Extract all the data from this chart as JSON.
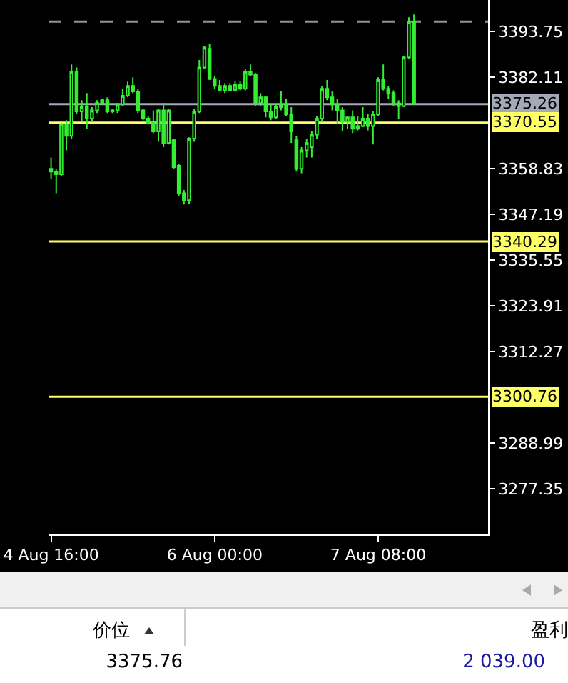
{
  "chart_data": {
    "type": "candlestick",
    "x": [
      "--08-04T16:00",
      "--08-04T17:00",
      "--08-04T18:00",
      "--08-04T19:00",
      "--08-04T20:00",
      "--08-04T21:00",
      "--08-04T22:00",
      "--08-04T23:00",
      "--08-05T00:00",
      "--08-05T01:00",
      "--08-05T02:00",
      "--08-05T03:00",
      "--08-05T04:00",
      "--08-05T05:00",
      "--08-05T06:00",
      "--08-05T07:00",
      "--08-05T08:00",
      "--08-05T09:00",
      "--08-05T10:00",
      "--08-05T11:00",
      "--08-05T12:00",
      "--08-05T13:00",
      "--08-05T14:00",
      "--08-05T15:00",
      "--08-05T16:00",
      "--08-05T17:00",
      "--08-05T18:00",
      "--08-05T19:00",
      "--08-05T20:00",
      "--08-05T21:00",
      "--08-05T22:00",
      "--08-05T23:00",
      "--08-06T00:00",
      "--08-06T01:00",
      "--08-06T02:00",
      "--08-06T03:00",
      "--08-06T04:00",
      "--08-06T05:00",
      "--08-06T06:00",
      "--08-06T07:00",
      "--08-06T08:00",
      "--08-06T09:00",
      "--08-06T10:00",
      "--08-06T11:00",
      "--08-06T12:00",
      "--08-06T13:00",
      "--08-06T14:00",
      "--08-06T15:00",
      "--08-06T16:00",
      "--08-06T17:00",
      "--08-06T18:00",
      "--08-06T19:00",
      "--08-06T20:00",
      "--08-06T21:00",
      "--08-06T22:00",
      "--08-06T23:00",
      "--08-07T00:00",
      "--08-07T01:00",
      "--08-07T02:00",
      "--08-07T03:00",
      "--08-07T04:00",
      "--08-07T05:00",
      "--08-07T06:00",
      "--08-07T07:00",
      "--08-07T08:00",
      "--08-07T09:00",
      "--08-07T10:00",
      "--08-07T11:00",
      "--08-07T12:00",
      "--08-07T13:00",
      "--08-07T14:00",
      "--08-07T15:00"
    ],
    "series": [
      {
        "color": "#33ee33",
        "ohlc": [
          [
            3358.1,
            3361.7,
            3356.3,
            3358.8
          ],
          [
            3358.1,
            3358.8,
            3352.6,
            3357.4
          ],
          [
            3357.4,
            3370.5,
            3357.0,
            3370.1
          ],
          [
            3370.1,
            3371.2,
            3363.5,
            3367.2
          ],
          [
            3367.2,
            3385.4,
            3366.5,
            3383.6
          ],
          [
            3383.6,
            3384.6,
            3372.7,
            3373.4
          ],
          [
            3373.4,
            3376.3,
            3370.8,
            3374.5
          ],
          [
            3374.5,
            3378.1,
            3369.0,
            3371.6
          ],
          [
            3371.6,
            3374.5,
            3370.8,
            3373.7
          ],
          [
            3373.7,
            3376.3,
            3373.0,
            3375.6
          ],
          [
            3375.6,
            3376.7,
            3375.2,
            3376.3
          ],
          [
            3376.3,
            3377.0,
            3373.0,
            3373.4
          ],
          [
            3373.4,
            3374.1,
            3373.0,
            3373.7
          ],
          [
            3373.7,
            3375.6,
            3373.0,
            3375.2
          ],
          [
            3375.2,
            3379.2,
            3374.8,
            3377.4
          ],
          [
            3377.4,
            3381.0,
            3377.0,
            3379.9
          ],
          [
            3379.9,
            3382.1,
            3378.1,
            3378.5
          ],
          [
            3378.5,
            3379.2,
            3373.0,
            3373.7
          ],
          [
            3373.7,
            3374.1,
            3371.2,
            3371.6
          ],
          [
            3371.6,
            3372.3,
            3370.1,
            3370.5
          ],
          [
            3370.5,
            3373.7,
            3367.9,
            3368.3
          ],
          [
            3368.3,
            3374.1,
            3365.7,
            3373.7
          ],
          [
            3373.7,
            3375.6,
            3364.3,
            3365.4
          ],
          [
            3365.4,
            3374.1,
            3365.0,
            3373.7
          ],
          [
            3366.1,
            3366.5,
            3358.8,
            3359.2
          ],
          [
            3359.6,
            3360.0,
            3351.9,
            3352.6
          ],
          [
            3352.6,
            3353.4,
            3349.7,
            3350.8
          ],
          [
            3350.8,
            3366.8,
            3349.9,
            3366.5
          ],
          [
            3366.5,
            3374.1,
            3365.7,
            3373.4
          ],
          [
            3373.4,
            3386.5,
            3373.0,
            3384.6
          ],
          [
            3384.6,
            3390.1,
            3384.3,
            3389.7
          ],
          [
            3389.4,
            3390.5,
            3381.4,
            3381.7
          ],
          [
            3381.7,
            3382.5,
            3379.2,
            3379.9
          ],
          [
            3379.9,
            3381.4,
            3378.5,
            3378.8
          ],
          [
            3378.8,
            3380.6,
            3378.1,
            3379.9
          ],
          [
            3379.9,
            3380.6,
            3378.5,
            3378.8
          ],
          [
            3378.8,
            3381.0,
            3378.5,
            3380.3
          ],
          [
            3380.3,
            3381.0,
            3378.8,
            3379.2
          ],
          [
            3379.2,
            3384.3,
            3378.8,
            3383.6
          ],
          [
            3383.6,
            3385.4,
            3382.5,
            3382.8
          ],
          [
            3382.8,
            3383.2,
            3374.8,
            3375.6
          ],
          [
            3375.6,
            3378.1,
            3374.8,
            3377.0
          ],
          [
            3377.0,
            3377.4,
            3371.9,
            3373.4
          ],
          [
            3373.4,
            3375.2,
            3371.2,
            3371.9
          ],
          [
            3371.9,
            3375.2,
            3371.6,
            3374.5
          ],
          [
            3374.5,
            3378.5,
            3373.7,
            3375.2
          ],
          [
            3375.2,
            3376.7,
            3372.3,
            3372.7
          ],
          [
            3372.7,
            3374.5,
            3365.4,
            3368.3
          ],
          [
            3366.1,
            3367.2,
            3358.1,
            3358.8
          ],
          [
            3358.8,
            3364.3,
            3357.7,
            3363.5
          ],
          [
            3363.5,
            3366.5,
            3361.7,
            3365.4
          ],
          [
            3364.3,
            3368.3,
            3361.7,
            3367.5
          ],
          [
            3367.5,
            3372.3,
            3366.5,
            3371.6
          ],
          [
            3371.6,
            3379.9,
            3370.8,
            3379.2
          ],
          [
            3379.2,
            3381.4,
            3376.3,
            3377.0
          ],
          [
            3377.0,
            3378.5,
            3373.7,
            3375.2
          ],
          [
            3375.2,
            3376.7,
            3370.1,
            3373.7
          ],
          [
            3373.7,
            3374.5,
            3368.3,
            3370.8
          ],
          [
            3370.8,
            3372.3,
            3369.0,
            3371.9
          ],
          [
            3371.9,
            3373.7,
            3367.9,
            3369.0
          ],
          [
            3369.0,
            3372.3,
            3368.6,
            3369.7
          ],
          [
            3369.7,
            3374.5,
            3369.4,
            3371.6
          ],
          [
            3371.6,
            3372.7,
            3368.6,
            3369.7
          ],
          [
            3369.7,
            3373.4,
            3365.0,
            3372.7
          ],
          [
            3372.7,
            3382.1,
            3372.3,
            3381.4
          ],
          [
            3381.4,
            3385.4,
            3378.8,
            3379.2
          ],
          [
            3379.2,
            3379.9,
            3376.7,
            3378.1
          ],
          [
            3378.1,
            3378.8,
            3374.8,
            3375.6
          ],
          [
            3375.6,
            3376.3,
            3371.6,
            3374.8
          ],
          [
            3374.8,
            3387.5,
            3374.5,
            3387.2
          ],
          [
            3387.2,
            3397.4,
            3386.8,
            3396.3
          ],
          [
            3396.3,
            3398.1,
            3375.2,
            3375.26
          ]
        ]
      }
    ],
    "xlim": [
      "--08-04T15:30",
      "--08-08T05:30"
    ],
    "xticks": [
      {
        "value": "--08-04T16:00",
        "label": "4 Aug 16:00"
      },
      {
        "value": "--08-06T00:00",
        "label": "6 Aug 00:00"
      },
      {
        "value": "--08-07T08:00",
        "label": "7 Aug 08:00"
      }
    ],
    "ylim": [
      3265.7,
      3401.8
    ],
    "yticks": [
      3393.75,
      3382.11,
      3358.83,
      3347.19,
      3335.55,
      3323.91,
      3312.27,
      3288.99,
      3277.35
    ],
    "grid": false,
    "ref_lines": [
      {
        "axis": "y",
        "value": 3396.3,
        "color": "#8a9a8a",
        "line_style": "dashed"
      },
      {
        "axis": "y",
        "value": 3375.26,
        "label": "3375.26",
        "color": "#a3a9b6"
      },
      {
        "axis": "y",
        "value": 3370.55,
        "label": "3370.55",
        "color": "#ffff66"
      },
      {
        "axis": "y",
        "value": 3340.29,
        "label": "3340.29",
        "color": "#ffff66"
      },
      {
        "axis": "y",
        "value": 3300.76,
        "label": "3300.76",
        "color": "#ffff66"
      }
    ],
    "annotations": [
      "价位",
      "盈利",
      "3375.76",
      "2 039.00"
    ]
  }
}
